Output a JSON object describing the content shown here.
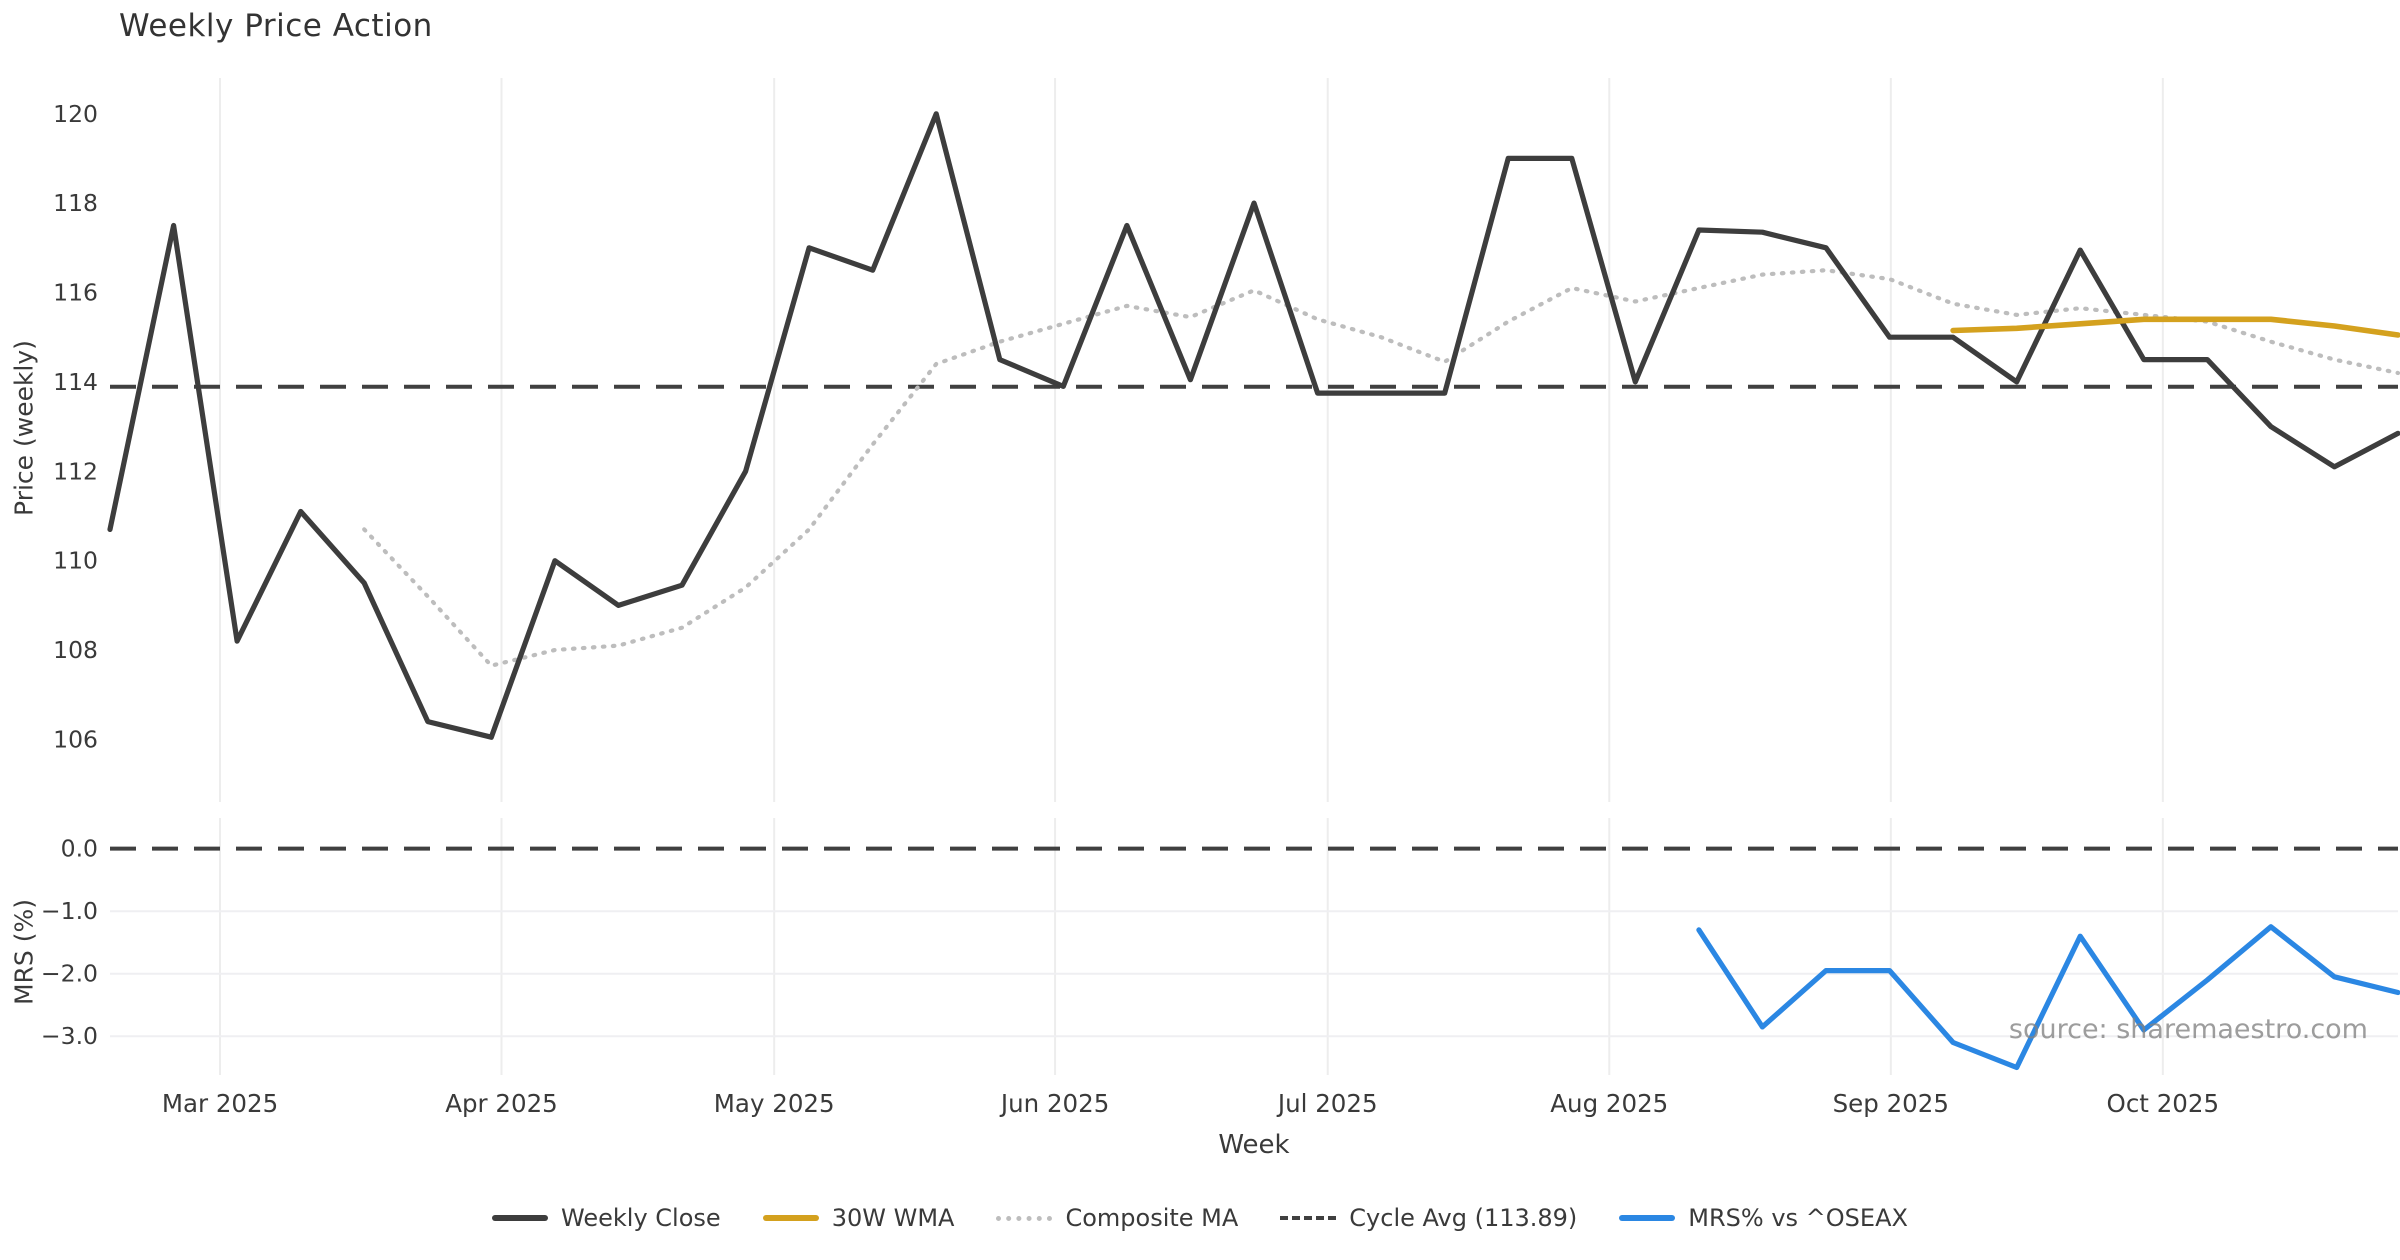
{
  "title": "Weekly Price Action",
  "watermark": "source: sharemaestro.com",
  "colors": {
    "weekly_close": "#3d3d3d",
    "wma_30w": "#d4a11e",
    "composite_ma": "#bdbdbd",
    "cycle_avg": "#404040",
    "mrs": "#2b87e3",
    "grid_vertical": "#ededed",
    "grid_horizontal": "#efeff2",
    "tick_text": "#3a3a3a",
    "title_text": "#333333",
    "watermark_text": "#828282"
  },
  "chart_data": [
    {
      "type": "line",
      "panel": "price",
      "title": "Weekly Price Action",
      "ylabel": "Price (weekly)",
      "ylim": [
        104.6,
        120.8
      ],
      "yticks": [
        106,
        108,
        110,
        112,
        114,
        116,
        118,
        120
      ],
      "x_axis_unit": "week_index_1_to_37",
      "n_weeks": 37,
      "x_ticks": [
        {
          "label": "Mar 2025",
          "week": 2.73
        },
        {
          "label": "Apr 2025",
          "week": 7.16
        },
        {
          "label": "May 2025",
          "week": 11.45
        },
        {
          "label": "Jun 2025",
          "week": 15.87
        },
        {
          "label": "Jul 2025",
          "week": 20.16
        },
        {
          "label": "Aug 2025",
          "week": 24.59
        },
        {
          "label": "Sep 2025",
          "week": 29.02
        },
        {
          "label": "Oct 2025",
          "week": 33.3
        }
      ],
      "series": [
        {
          "name": "Weekly Close",
          "start_week": 1,
          "values": [
            110.7,
            117.5,
            108.2,
            111.1,
            109.5,
            106.4,
            106.05,
            110.0,
            109.0,
            109.45,
            112.0,
            117.0,
            116.5,
            120.0,
            114.5,
            113.9,
            117.5,
            114.05,
            118.0,
            113.75,
            113.75,
            113.75,
            119.0,
            119.0,
            114.0,
            117.4,
            117.35,
            117.0,
            115.0,
            115.0,
            114.0,
            116.95,
            114.5,
            114.5,
            113.0,
            112.1,
            112.85
          ]
        },
        {
          "name": "30W WMA",
          "start_week": 30,
          "values": [
            115.15,
            115.2,
            115.3,
            115.4,
            115.4,
            115.4,
            115.25,
            115.05
          ]
        },
        {
          "name": "Composite MA",
          "start_week": 5,
          "values": [
            110.7,
            109.2,
            107.65,
            108.0,
            108.1,
            108.5,
            109.4,
            110.7,
            112.6,
            114.4,
            114.9,
            115.3,
            115.7,
            115.45,
            116.05,
            115.4,
            115.0,
            114.45,
            115.35,
            116.1,
            115.8,
            116.1,
            116.4,
            116.5,
            116.3,
            115.75,
            115.5,
            115.65,
            115.5,
            115.35,
            114.9,
            114.5,
            114.2
          ]
        },
        {
          "name": "Cycle Avg",
          "type": "hline",
          "value": 113.89,
          "style": "dashed"
        }
      ]
    },
    {
      "type": "line",
      "panel": "mrs",
      "ylabel": "MRS (%)",
      "xlabel": "Week",
      "ylim": [
        -3.62,
        0.49
      ],
      "yticks": [
        0.0,
        -1.0,
        -2.0,
        -3.0
      ],
      "ytick_labels": [
        "0.0",
        "−1.0",
        "−2.0",
        "−3.0"
      ],
      "series": [
        {
          "name": "MRS% vs ^OSEAX",
          "start_week": 26,
          "values": [
            -1.3,
            -2.85,
            -1.95,
            -1.95,
            -3.1,
            -3.5,
            -1.4,
            -2.9,
            -2.1,
            -1.25,
            -2.05,
            -2.3
          ]
        },
        {
          "name": "Zero line",
          "type": "hline",
          "value": 0.0,
          "style": "dashed"
        }
      ]
    }
  ],
  "legend": {
    "items": [
      {
        "label": "Weekly Close",
        "swatch": "solid-dark-line"
      },
      {
        "label": "30W WMA",
        "swatch": "solid-gold-line"
      },
      {
        "label": "Composite MA",
        "swatch": "dotted-gray-line"
      },
      {
        "label": "Cycle Avg (113.89)",
        "swatch": "dashed-dark-line"
      },
      {
        "label": "MRS% vs ^OSEAX",
        "swatch": "solid-blue-line"
      }
    ]
  }
}
